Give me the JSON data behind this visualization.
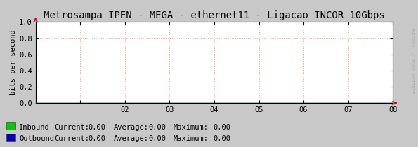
{
  "title": "Metrosampa IPEN - MEGA - ethernet11 - Ligacao INCOR 10Gbps",
  "ylabel": "bits per second",
  "xlim": [
    0,
    8
  ],
  "ylim": [
    0,
    1.0
  ],
  "xticks": [
    1,
    2,
    3,
    4,
    5,
    6,
    7,
    8
  ],
  "xtick_labels": [
    "",
    "02",
    "03",
    "04",
    "05",
    "06",
    "07",
    "08"
  ],
  "yticks": [
    0.0,
    0.2,
    0.4,
    0.6,
    0.8,
    1.0
  ],
  "grid_color": "#ff9999",
  "grid_linestyle": ":",
  "bg_color": "#c8c8c8",
  "plot_bg_color": "#ffffff",
  "border_color": "#000000",
  "arrow_color": "#cc0000",
  "title_fontsize": 10,
  "tick_fontsize": 7.5,
  "label_fontsize": 7.5,
  "inbound_color": "#00cc00",
  "outbound_color": "#0000bb",
  "legend_items": [
    {
      "label": "Inbound",
      "color": "#00cc00",
      "current": "0.00",
      "average": "0.00",
      "maximum": "0.00"
    },
    {
      "label": "Outbound",
      "color": "#0000bb",
      "current": "0.00",
      "average": "0.00",
      "maximum": "0.00"
    }
  ],
  "right_label": "RRDTOOL / TOBI OETIKER",
  "watermark_color": "#aaaaaa",
  "legend_fontsize": 7.5
}
